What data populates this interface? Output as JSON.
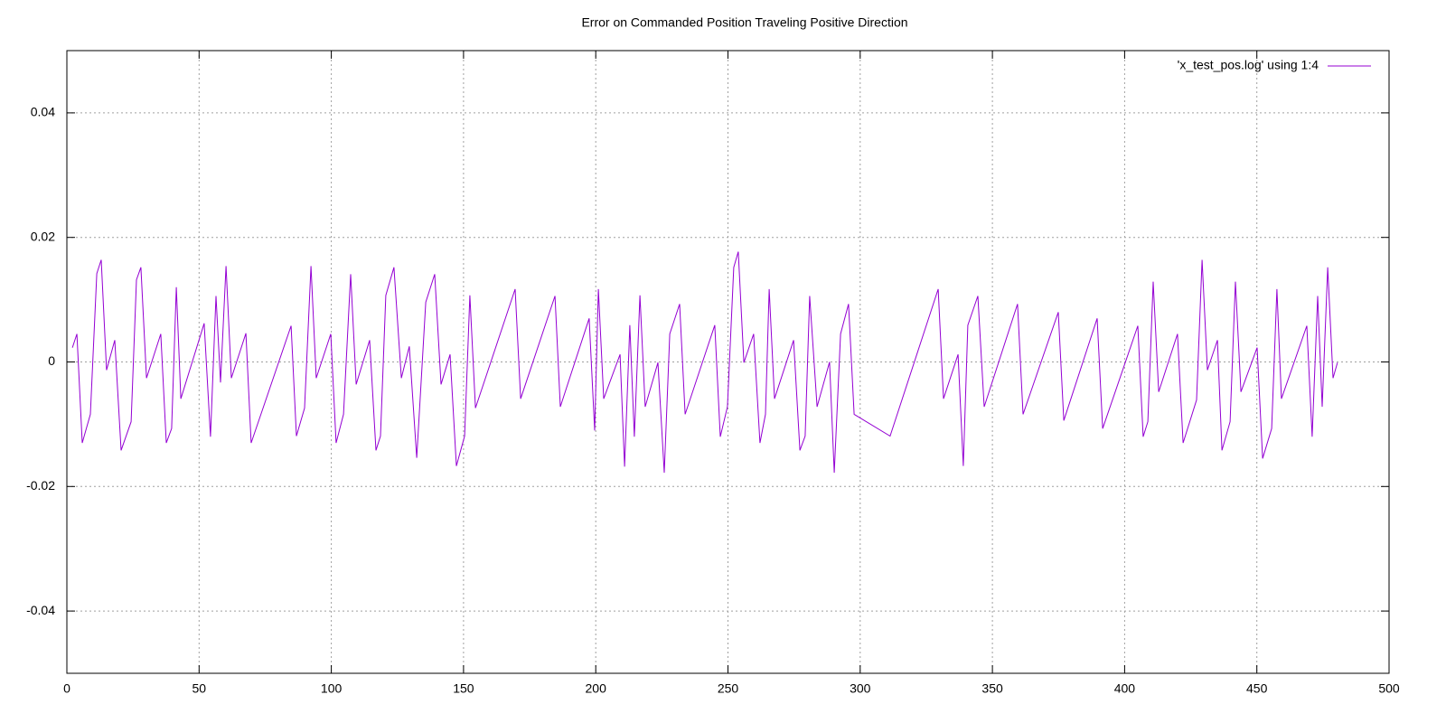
{
  "chart_data": {
    "type": "line",
    "title": "Error on Commanded Position Traveling Positive Direction",
    "xlim": [
      0,
      500
    ],
    "xticks": [
      0,
      50,
      100,
      150,
      200,
      250,
      300,
      350,
      400,
      450,
      500
    ],
    "ylim": [
      -0.05,
      0.05
    ],
    "yticks": [
      -0.04,
      -0.02,
      0,
      0.02,
      0.04
    ],
    "grid": true,
    "legend": "top-right",
    "series": [
      {
        "name": "'x_test_pos.log' using 1:4",
        "color": "#9400d3",
        "x": [
          2.1,
          3.8,
          5.8,
          8.9,
          11.3,
          13.0,
          15.0,
          18.1,
          20.5,
          24.3,
          26.3,
          28.0,
          30.1,
          35.5,
          37.6,
          39.6,
          41.4,
          43.1,
          51.9,
          54.3,
          56.4,
          58.1,
          60.2,
          62.2,
          67.7,
          69.7,
          84.8,
          86.8,
          89.9,
          92.3,
          94.3,
          99.8,
          101.8,
          104.6,
          107.3,
          109.4,
          114.5,
          116.9,
          118.6,
          120.6,
          123.7,
          126.5,
          129.5,
          132.3,
          135.7,
          139.1,
          141.5,
          144.9,
          147.3,
          150.4,
          152.4,
          154.5,
          169.5,
          171.6,
          184.6,
          186.6,
          197.5,
          199.6,
          201.0,
          203.0,
          209.2,
          210.9,
          212.9,
          214.6,
          216.7,
          218.7,
          223.5,
          225.9,
          228.0,
          231.7,
          233.8,
          245.0,
          247.1,
          249.8,
          252.2,
          253.9,
          256.0,
          259.7,
          262.1,
          264.2,
          265.6,
          267.6,
          274.8,
          277.2,
          279.2,
          280.9,
          283.7,
          288.4,
          290.2,
          292.6,
          295.6,
          297.7,
          311.3,
          329.5,
          331.5,
          337.0,
          339.0,
          340.7,
          344.5,
          346.9,
          359.5,
          361.6,
          374.9,
          377.0,
          389.6,
          391.7,
          405.0,
          407.0,
          408.8,
          410.8,
          412.9,
          420.0,
          422.1,
          427.2,
          429.3,
          431.3,
          435.1,
          436.8,
          439.9,
          441.9,
          444.0,
          450.1,
          452.2,
          455.6,
          457.6,
          459.3,
          468.9,
          470.9,
          473.0,
          474.7,
          476.8,
          478.8,
          480.5
        ],
        "values": [
          0.0023,
          0.0045,
          -0.013,
          -0.0084,
          0.0142,
          0.0164,
          -0.0013,
          0.0035,
          -0.0142,
          -0.0096,
          0.0132,
          0.0152,
          -0.0026,
          0.0045,
          -0.013,
          -0.0107,
          0.012,
          -0.0059,
          0.0062,
          -0.012,
          0.0106,
          -0.0033,
          0.0154,
          -0.0026,
          0.0046,
          -0.013,
          0.0058,
          -0.0119,
          -0.0074,
          0.0154,
          -0.0026,
          0.0045,
          -0.013,
          -0.0084,
          0.0141,
          -0.0036,
          0.0035,
          -0.0142,
          -0.0119,
          0.0107,
          0.0152,
          -0.0026,
          0.0025,
          -0.0154,
          0.0096,
          0.0141,
          -0.0036,
          0.0012,
          -0.0167,
          -0.0119,
          0.0107,
          -0.0074,
          0.0117,
          -0.0059,
          0.0106,
          -0.0072,
          0.007,
          -0.011,
          0.0117,
          -0.0059,
          0.0012,
          -0.0168,
          0.0059,
          -0.012,
          0.0107,
          -0.0072,
          -0.0001,
          -0.0178,
          0.0045,
          0.0093,
          -0.0084,
          0.0059,
          -0.012,
          -0.0072,
          0.0152,
          0.0177,
          -0.0001,
          0.0045,
          -0.013,
          -0.0084,
          0.0117,
          -0.0059,
          0.0035,
          -0.0142,
          -0.0119,
          0.0106,
          -0.0072,
          0,
          -0.0178,
          0.0045,
          0.0093,
          -0.0084,
          -0.0119,
          0.0117,
          -0.0059,
          0.0012,
          -0.0167,
          0.0059,
          0.0106,
          -0.0072,
          0.0093,
          -0.0084,
          0.008,
          -0.0094,
          0.007,
          -0.0107,
          0.0058,
          -0.012,
          -0.0096,
          0.0129,
          -0.0048,
          0.0045,
          -0.013,
          -0.0061,
          0.0164,
          -0.0013,
          0.0035,
          -0.0142,
          -0.0096,
          0.0129,
          -0.0048,
          0.0023,
          -0.0155,
          -0.0107,
          0.0117,
          -0.0059,
          0.0058,
          -0.012,
          0.0106,
          -0.0072,
          0.0152,
          -0.0026,
          -0.0001
        ]
      }
    ]
  }
}
